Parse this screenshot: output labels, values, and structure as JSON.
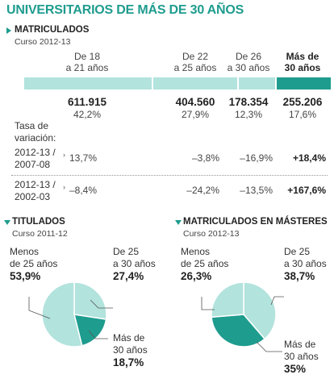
{
  "title": "UNIVERSITARIOS DE MÁS DE 30 AÑOS",
  "colors": {
    "accent": "#1e9c8e",
    "light": "#b2e3dd",
    "dark": "#1e9c8e",
    "text": "#222222"
  },
  "chart_data": [
    {
      "type": "bar",
      "title": "MATRICULADOS",
      "subtitle": "Curso 2012-13",
      "categories": [
        "De 18 a 21 años",
        "De 22 a 25 años",
        "De 26 a 30 años",
        "Más de 30 años"
      ],
      "category_lines": [
        [
          "De 18",
          "a 21 años"
        ],
        [
          "De 22",
          "a 25 años"
        ],
        [
          "De 26",
          "a 30 años"
        ],
        [
          "Más de",
          "30 años"
        ]
      ],
      "values": [
        611915,
        404560,
        178354,
        255206
      ],
      "value_labels": [
        "611.915",
        "404.560",
        "178.354",
        "255.206"
      ],
      "percent_labels": [
        "42,2%",
        "27,9%",
        "12,3%",
        "17,6%"
      ],
      "percents": [
        42.2,
        27.9,
        12.3,
        17.6
      ],
      "highlight_index": 3,
      "rate_title_lines": [
        "Tasa de",
        "variación:"
      ],
      "rates": [
        {
          "period_lines": [
            "2012-13 /",
            "2007-08"
          ],
          "values": [
            "13,7%",
            "–3,8%",
            "–16,9%",
            "+18,4%"
          ]
        },
        {
          "period_lines": [
            "2012-13 /",
            "2002-03"
          ],
          "values": [
            "–8,4%",
            "–24,2%",
            "–13,5%",
            "+167,6%"
          ]
        }
      ]
    },
    {
      "type": "pie",
      "title": "TITULADOS",
      "subtitle": "Curso 2011-12",
      "slices": [
        {
          "label_lines": [
            "Menos",
            "de 25 años"
          ],
          "value_label": "53,9%",
          "value": 53.9,
          "color": "#b2e3dd"
        },
        {
          "label_lines": [
            "De 25",
            "a 30 años"
          ],
          "value_label": "27,4%",
          "value": 27.4,
          "color": "#b2e3dd"
        },
        {
          "label_lines": [
            "Más de",
            "30 años"
          ],
          "value_label": "18,7%",
          "value": 18.7,
          "color": "#1e9c8e"
        }
      ]
    },
    {
      "type": "pie",
      "title": "MATRICULADOS EN MÁSTERES",
      "subtitle": "Curso 2012-13",
      "slices": [
        {
          "label_lines": [
            "Menos",
            "de 25 años"
          ],
          "value_label": "26,3%",
          "value": 26.3,
          "color": "#b2e3dd"
        },
        {
          "label_lines": [
            "De 25",
            "a 30 años"
          ],
          "value_label": "38,7%",
          "value": 38.7,
          "color": "#b2e3dd"
        },
        {
          "label_lines": [
            "Más de",
            "30 años"
          ],
          "value_label": "35%",
          "value": 35,
          "color": "#1e9c8e"
        }
      ]
    }
  ]
}
